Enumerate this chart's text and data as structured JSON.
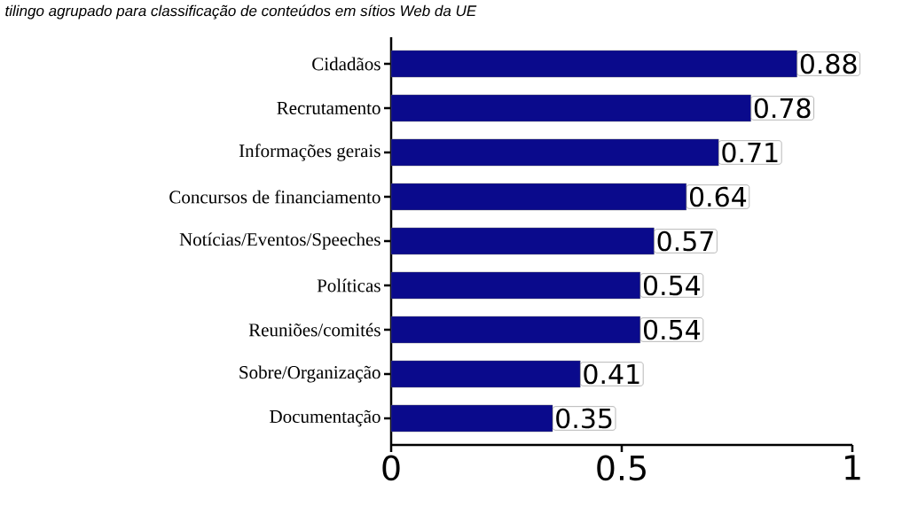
{
  "chart_data": {
    "type": "bar",
    "orientation": "horizontal",
    "title": "tilingo agrupado para classificação de conteúdos em sítios Web da UE",
    "categories": [
      "Cidadãos",
      "Recrutamento",
      "Informações gerais",
      "Concursos de financiamento",
      "Notícias/Eventos/Speeches",
      "Políticas",
      "Reuniões/comités",
      "Sobre/Organização",
      "Documentação"
    ],
    "values": [
      0.88,
      0.78,
      0.71,
      0.64,
      0.57,
      0.54,
      0.54,
      0.41,
      0.35
    ],
    "color": "#0a0a8c",
    "data_labels": true,
    "xlim": [
      0,
      1
    ],
    "xticks": [
      0,
      0.5,
      1
    ]
  }
}
